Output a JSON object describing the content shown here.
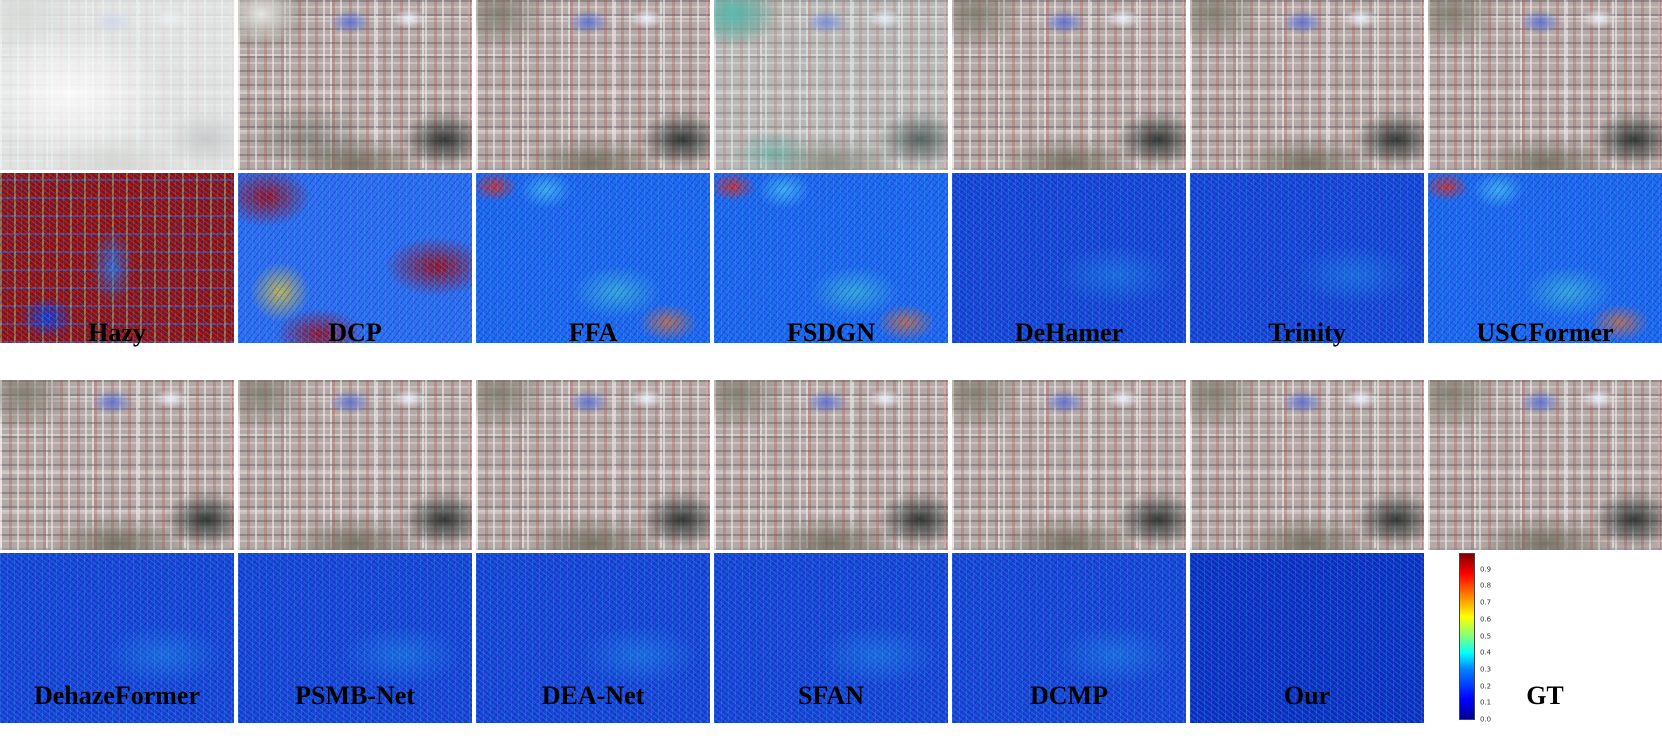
{
  "figure": {
    "captions_row1": [
      "Hazy",
      "DCP",
      "FFA",
      "FSDGN",
      "DeHamer",
      "Trinity",
      "USCFormer"
    ],
    "captions_row2": [
      "DehazeFormer",
      "PSMB-Net",
      "DEA-Net",
      "SFAN",
      "DCMP",
      "Our",
      "GT"
    ],
    "colorbar": {
      "ticks": [
        "0.9",
        "0.8",
        "0.7",
        "0.6",
        "0.5",
        "0.4",
        "0.3",
        "0.2",
        "0.1",
        "0.0"
      ],
      "colormap": "jet",
      "range": [
        0.0,
        1.0
      ]
    },
    "colors": {
      "background": "#ffffff",
      "error_low": "#0000ff",
      "error_high": "#800000"
    }
  }
}
